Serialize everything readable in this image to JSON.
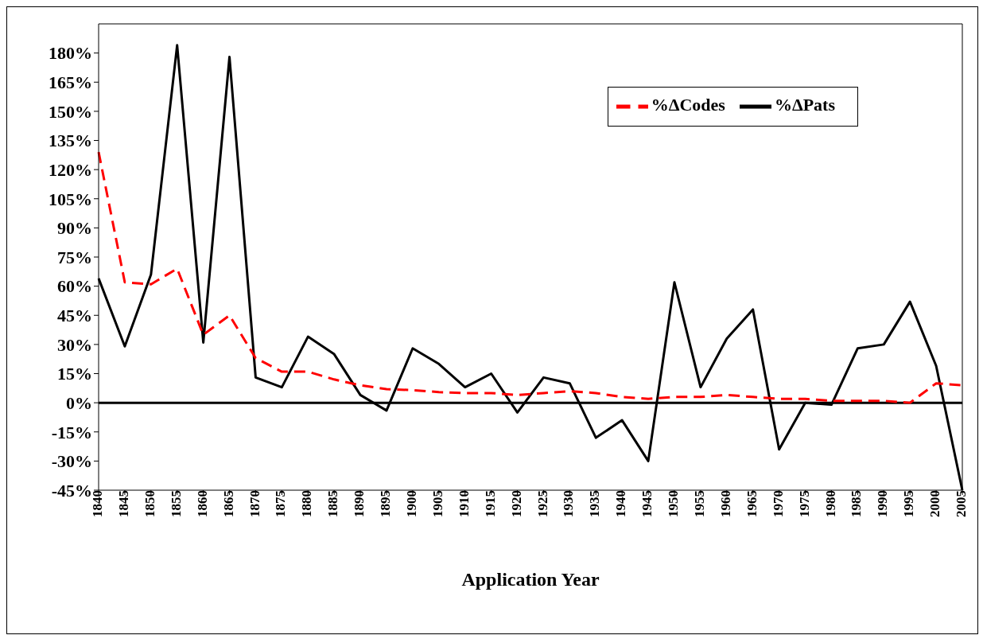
{
  "chart_data": {
    "type": "line",
    "xlabel": "Application Year",
    "categories": [
      "1840",
      "1845",
      "1850",
      "1855",
      "1860",
      "1865",
      "1870",
      "1875",
      "1880",
      "1885",
      "1890",
      "1895",
      "1900",
      "1905",
      "1910",
      "1915",
      "1920",
      "1925",
      "1930",
      "1935",
      "1940",
      "1945",
      "1950",
      "1955",
      "1960",
      "1965",
      "1970",
      "1975",
      "1980",
      "1985",
      "1990",
      "1995",
      "2000",
      "2005"
    ],
    "series": [
      {
        "name": "%ΔPats",
        "color": "#000000",
        "line_style": "solid",
        "values": [
          64,
          29,
          66,
          184,
          31,
          178,
          13,
          8,
          34,
          25,
          4,
          -4,
          28,
          20,
          8,
          15,
          -5,
          13,
          10,
          -18,
          -9,
          -30,
          62,
          8,
          33,
          48,
          -24,
          0,
          -1,
          28,
          30,
          52,
          19,
          -45
        ]
      },
      {
        "name": "%ΔCodes",
        "color": "#ff0000",
        "line_style": "dashed",
        "values": [
          129,
          62,
          61,
          69,
          35,
          45,
          23,
          16,
          16,
          12,
          9,
          7,
          6.5,
          5.5,
          5,
          5,
          4,
          5,
          6,
          5,
          3,
          2,
          3,
          3,
          4,
          3,
          2,
          2,
          1,
          1,
          1,
          0,
          10,
          9
        ]
      }
    ],
    "ylim": [
      -45,
      195
    ],
    "yticks": [
      {
        "value": -45,
        "label": "-45%"
      },
      {
        "value": -30,
        "label": "-30%"
      },
      {
        "value": -15,
        "label": "-15%"
      },
      {
        "value": 0,
        "label": "0%"
      },
      {
        "value": 15,
        "label": "15%"
      },
      {
        "value": 30,
        "label": "30%"
      },
      {
        "value": 45,
        "label": "45%"
      },
      {
        "value": 60,
        "label": "60%"
      },
      {
        "value": 75,
        "label": "75%"
      },
      {
        "value": 90,
        "label": "90%"
      },
      {
        "value": 105,
        "label": "105%"
      },
      {
        "value": 120,
        "label": "120%"
      },
      {
        "value": 135,
        "label": "135%"
      },
      {
        "value": 150,
        "label": "150%"
      },
      {
        "value": 165,
        "label": "165%"
      },
      {
        "value": 180,
        "label": "180%"
      }
    ],
    "ref_lines": [
      {
        "axis": "y",
        "value": 0,
        "color": "#000000"
      }
    ],
    "grid": false,
    "legend": "top right",
    "marker": "none"
  }
}
